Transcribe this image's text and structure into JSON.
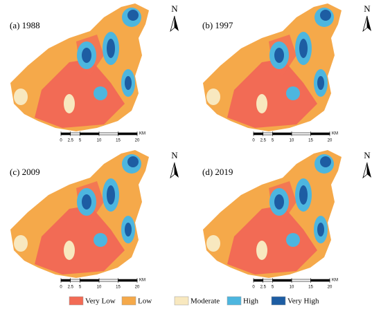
{
  "panels": [
    {
      "label": "(a) 1988"
    },
    {
      "label": "(b) 1997"
    },
    {
      "label": "(c) 2009"
    },
    {
      "label": "(d) 2019"
    }
  ],
  "north": "N",
  "scale_bar": {
    "ticks": [
      0,
      2.5,
      5,
      10,
      15,
      20
    ],
    "unit": "KM"
  },
  "legend": [
    {
      "label": "Very Low",
      "color": "#f26b55"
    },
    {
      "label": "Low",
      "color": "#f5a94a"
    },
    {
      "label": "Moderate",
      "color": "#f8e8bf"
    },
    {
      "label": "High",
      "color": "#4db6df"
    },
    {
      "label": "Very High",
      "color": "#1d5da3"
    }
  ]
}
